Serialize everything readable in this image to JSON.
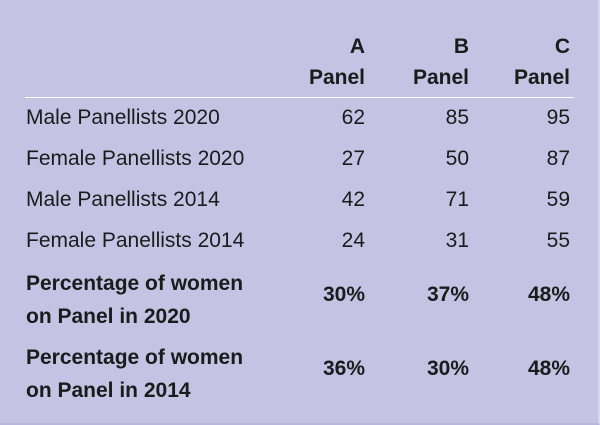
{
  "table": {
    "columns": [
      {
        "top": "A",
        "bottom": "Panel"
      },
      {
        "top": "B",
        "bottom": "Panel"
      },
      {
        "top": "C",
        "bottom": "Panel"
      }
    ],
    "rows": [
      {
        "label": "Male Panellists 2020",
        "values": [
          "62",
          "85",
          "95"
        ]
      },
      {
        "label": "Female Panellists 2020",
        "values": [
          "27",
          "50",
          "87"
        ]
      },
      {
        "label": "Male Panellists 2014",
        "values": [
          "42",
          "71",
          "59"
        ]
      },
      {
        "label": "Female Panellists 2014",
        "values": [
          "24",
          "31",
          "55"
        ]
      }
    ],
    "bold_rows": [
      {
        "label_line1": "Percentage of women",
        "label_line2": "on Panel in 2020",
        "values": [
          "30%",
          "37%",
          "48%"
        ]
      },
      {
        "label_line1": "Percentage of women",
        "label_line2": "on Panel in 2014",
        "values": [
          "36%",
          "30%",
          "48%"
        ]
      }
    ]
  },
  "colors": {
    "background": "#c5c3e4",
    "text": "#1b1b1b",
    "rule": "#ffffff"
  }
}
